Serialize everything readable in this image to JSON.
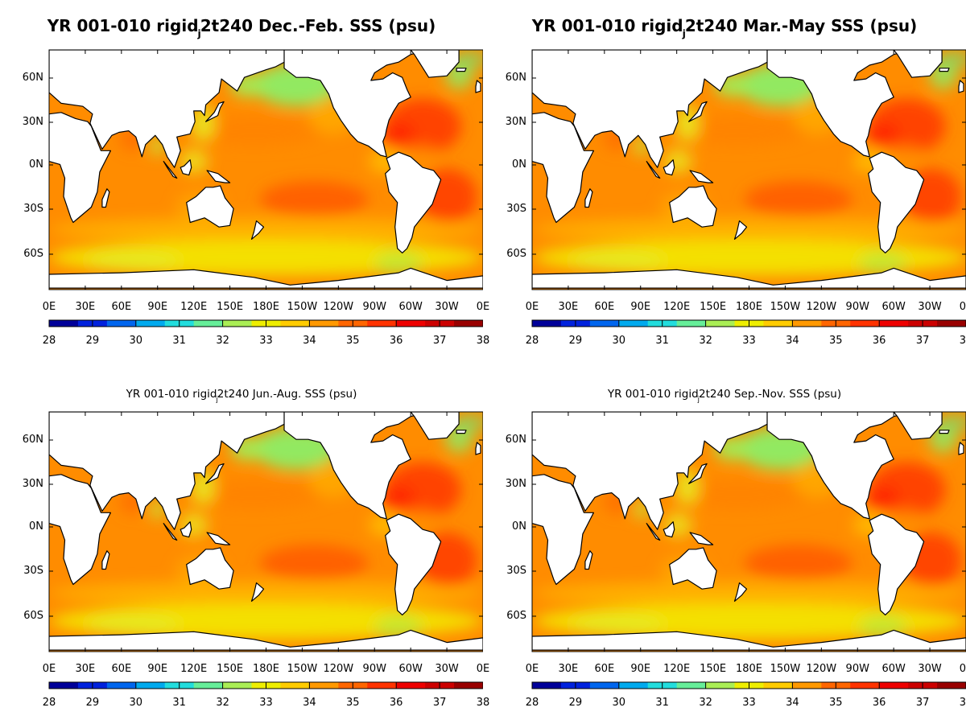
{
  "panels": [
    {
      "title_main_a": "YR 001-010 rigid",
      "title_sub": "j",
      "title_main_b": "2t240 Dec.-Feb. SSS (psu)",
      "title_style": "big"
    },
    {
      "title_main_a": "YR 001-010 rigid",
      "title_sub": "j",
      "title_main_b": "2t240 Mar.-May SSS (psu)",
      "title_style": "big"
    },
    {
      "title_main_a": "YR 001-010 rigid",
      "title_sub": "j",
      "title_main_b": "2t240 Jun.-Aug. SSS (psu)",
      "title_style": "small"
    },
    {
      "title_main_a": "YR 001-010 rigid",
      "title_sub": "j",
      "title_main_b": "2t240 Sep.-Nov. SSS (psu)",
      "title_style": "small"
    }
  ],
  "lat_labels": [
    "60N",
    "30N",
    "0N",
    "30S",
    "60S"
  ],
  "lon_labels": [
    "0E",
    "30E",
    "60E",
    "90E",
    "120E",
    "150E",
    "180E",
    "150W",
    "120W",
    "90W",
    "60W",
    "30W",
    "0E"
  ],
  "colorbar": {
    "labels": [
      "28",
      "29",
      "30",
      "31",
      "32",
      "33",
      "34",
      "35",
      "36",
      "37",
      "38"
    ],
    "range": [
      28,
      38
    ],
    "colors": [
      "#000099",
      "#0022dd",
      "#0066ee",
      "#00aaee",
      "#22dddd",
      "#66ee99",
      "#aaee55",
      "#eeee00",
      "#ffcc00",
      "#ff9900",
      "#ff6600",
      "#ff3300",
      "#ee0000",
      "#cc0000",
      "#990000"
    ]
  },
  "colors": {
    "ocean_base": "#ff8c00",
    "land": "#ffffff",
    "coast": "#000000"
  }
}
